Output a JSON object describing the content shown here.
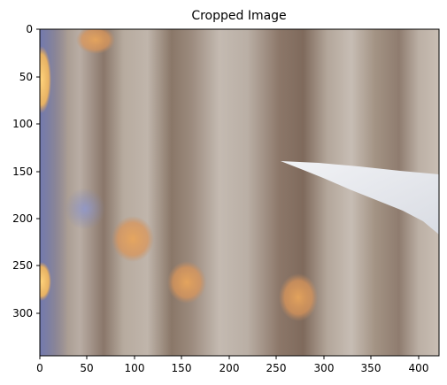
{
  "figure": {
    "title": "Cropped Image"
  },
  "image": {
    "description_colors": {
      "base": "#a8998d",
      "light_stripe": "#c2b7ad",
      "dark_stripe": "#7f6b5d",
      "bokeh_orange": "#e6a861",
      "bokeh_yellow": "#f4c36b",
      "bokeh_blue": "#7d84b5",
      "paper_white": "#eceff4"
    }
  },
  "axes": {
    "x_ticks": [
      "0",
      "50",
      "100",
      "150",
      "200",
      "250",
      "300",
      "350",
      "400"
    ],
    "y_ticks": [
      "0",
      "50",
      "100",
      "150",
      "200",
      "250",
      "300"
    ],
    "x_range": [
      0,
      422
    ],
    "y_range": [
      0,
      346
    ]
  }
}
